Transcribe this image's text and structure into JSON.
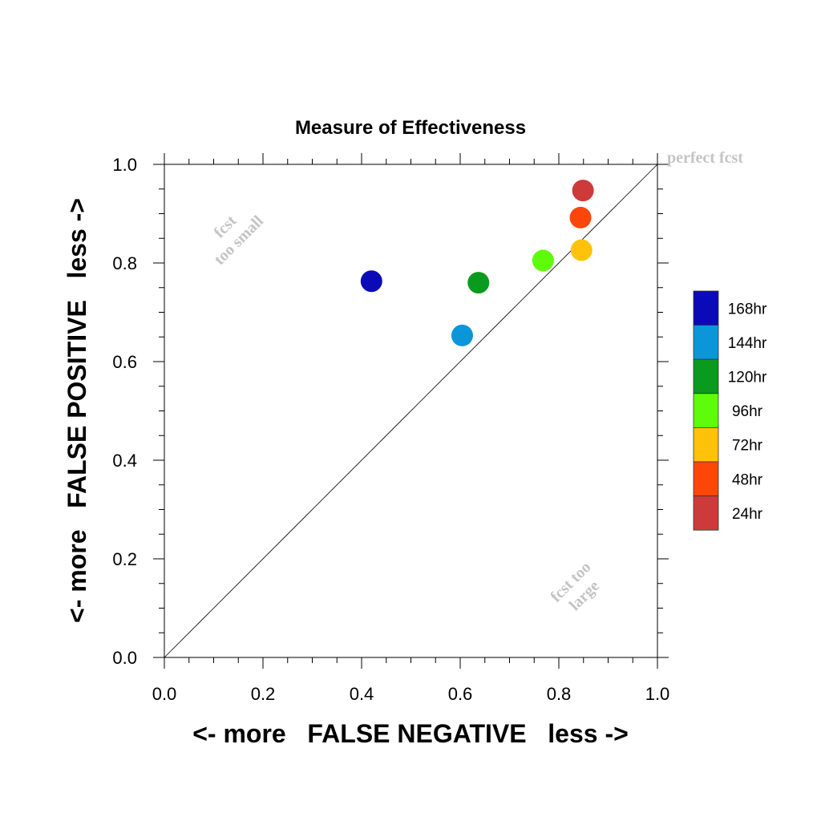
{
  "chart_data": {
    "type": "scatter",
    "title": "Measure of Effectiveness",
    "xlabel": "<- more   FALSE NEGATIVE   less ->",
    "ylabel": "<- more   FALSE POSITIVE   less ->",
    "xlim": [
      0,
      1
    ],
    "ylim": [
      0,
      1
    ],
    "xticks": [
      "0.0",
      "0.2",
      "0.4",
      "0.6",
      "0.8",
      "1.0"
    ],
    "yticks": [
      "0.0",
      "0.2",
      "0.4",
      "0.6",
      "0.8",
      "1.0"
    ],
    "diagonal_line": true,
    "annotations": {
      "perfect": "perfect fcst",
      "too_small": [
        "fcst",
        "too small"
      ],
      "too_large": [
        "fcst too",
        "large"
      ]
    },
    "legend_position": "right",
    "series": [
      {
        "name": "168hr",
        "color": "#0a0ab8",
        "x": 0.42,
        "y": 0.763
      },
      {
        "name": "144hr",
        "color": "#0a96d8",
        "x": 0.604,
        "y": 0.653
      },
      {
        "name": "120hr",
        "color": "#0a9a1e",
        "x": 0.637,
        "y": 0.76
      },
      {
        "name": "96hr",
        "color": "#5efc0a",
        "x": 0.768,
        "y": 0.805
      },
      {
        "name": "72hr",
        "color": "#ffc20a",
        "x": 0.846,
        "y": 0.826
      },
      {
        "name": "48hr",
        "color": "#ff460a",
        "x": 0.844,
        "y": 0.892
      },
      {
        "name": "24hr",
        "color": "#cc3a3a",
        "x": 0.849,
        "y": 0.947
      }
    ]
  }
}
